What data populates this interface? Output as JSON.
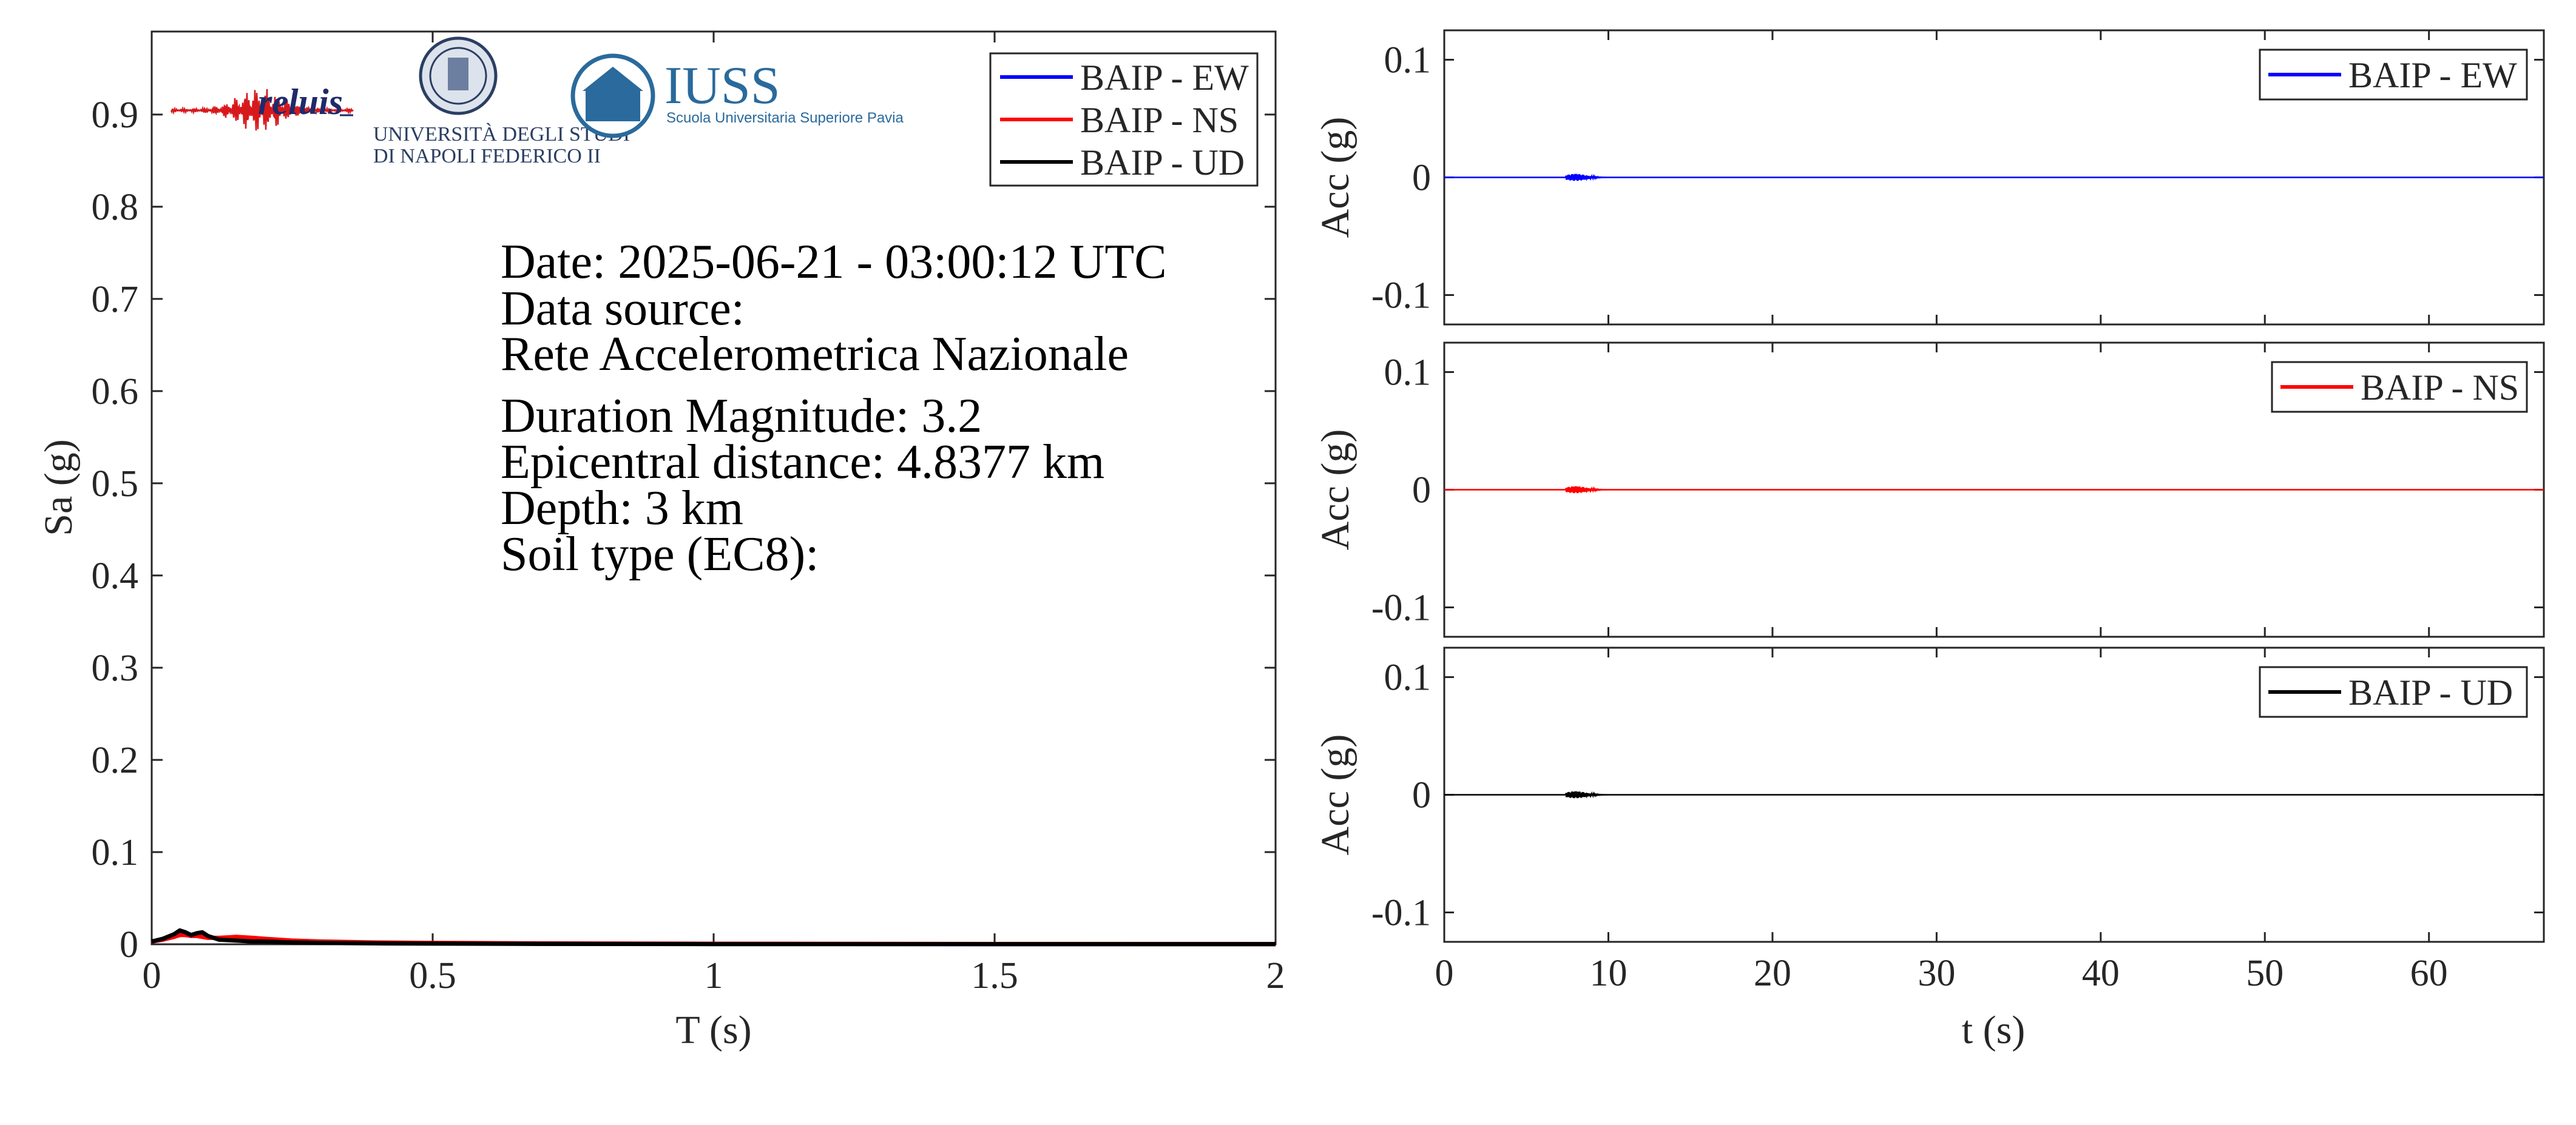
{
  "spectrum": {
    "xlabel": "T (s)",
    "ylabel": "Sa (g)",
    "xlim": [
      0,
      2
    ],
    "ylim": [
      0,
      0.99
    ],
    "xticks": [
      "0",
      "0.5",
      "1",
      "1.5",
      "2"
    ],
    "xtick_values": [
      0,
      0.5,
      1,
      1.5,
      2
    ],
    "yticks": [
      "0",
      "0.1",
      "0.2",
      "0.3",
      "0.4",
      "0.5",
      "0.6",
      "0.7",
      "0.8",
      "0.9"
    ],
    "ytick_values": [
      0,
      0.1,
      0.2,
      0.3,
      0.4,
      0.5,
      0.6,
      0.7,
      0.8,
      0.9
    ],
    "legend": [
      "BAIP - EW",
      "BAIP - NS",
      "BAIP - UD"
    ],
    "info": {
      "date": "Date: 2025-06-21 - 03:00:12 UTC",
      "source_label": "Data source:",
      "source": "Rete Accelerometrica Nazionale",
      "magnitude": "Duration Magnitude: 3.2",
      "distance": "Epicentral distance: 4.8377 km",
      "depth": "Depth: 3 km",
      "soil": "Soil type (EC8):"
    },
    "logos": {
      "reluis": "reluis",
      "unina_line1": "UNIVERSITÀ DEGLI STUDI",
      "unina_line2": "DI NAPOLI FEDERICO II",
      "iuss": "IUSS",
      "iuss_sub": "Scuola Universitaria Superiore Pavia"
    }
  },
  "time_axis": {
    "xlabel": "t (s)",
    "xlim": [
      0,
      67
    ],
    "xticks": [
      "0",
      "10",
      "20",
      "30",
      "40",
      "50",
      "60"
    ],
    "xtick_values": [
      0,
      10,
      20,
      30,
      40,
      50,
      60
    ],
    "ylabel": "Acc (g)",
    "ylim": [
      -0.125,
      0.125
    ],
    "yticks": [
      "-0.1",
      "0",
      "0.1"
    ],
    "ytick_values": [
      -0.1,
      0,
      0.1
    ]
  },
  "colors": {
    "EW": "#0000ff",
    "NS": "#ff0000",
    "UD": "#000000"
  },
  "chart_data": [
    {
      "type": "line",
      "xlabel": "T (s)",
      "ylabel": "Sa (g)",
      "xlim": [
        0,
        2
      ],
      "ylim": [
        0,
        0.99
      ],
      "legend_position": "top-right",
      "series": [
        {
          "name": "BAIP - EW",
          "color": "#0000ff",
          "x": [
            0,
            0.02,
            0.04,
            0.05,
            0.06,
            0.07,
            0.08,
            0.09,
            0.1,
            0.12,
            0.15,
            0.18,
            0.2,
            0.25,
            0.3,
            0.4,
            0.5,
            0.7,
            1.0,
            1.5,
            2.0
          ],
          "y": [
            0.003,
            0.005,
            0.009,
            0.012,
            0.011,
            0.009,
            0.01,
            0.011,
            0.008,
            0.006,
            0.006,
            0.005,
            0.004,
            0.003,
            0.002,
            0.0015,
            0.001,
            0.0006,
            0.0004,
            0.0002,
            0.0001
          ]
        },
        {
          "name": "BAIP - NS",
          "color": "#ff0000",
          "x": [
            0,
            0.02,
            0.04,
            0.05,
            0.06,
            0.07,
            0.08,
            0.09,
            0.1,
            0.12,
            0.15,
            0.18,
            0.2,
            0.25,
            0.3,
            0.4,
            0.5,
            0.7,
            1.0,
            1.5,
            2.0
          ],
          "y": [
            0.003,
            0.005,
            0.008,
            0.01,
            0.01,
            0.009,
            0.009,
            0.008,
            0.007,
            0.007,
            0.008,
            0.007,
            0.006,
            0.004,
            0.003,
            0.002,
            0.0015,
            0.001,
            0.0006,
            0.0003,
            0.0002
          ]
        },
        {
          "name": "BAIP - UD",
          "color": "#000000",
          "x": [
            0,
            0.02,
            0.04,
            0.05,
            0.06,
            0.07,
            0.08,
            0.09,
            0.1,
            0.12,
            0.15,
            0.18,
            0.2,
            0.25,
            0.3,
            0.4,
            0.5,
            0.7,
            1.0,
            1.5,
            2.0
          ],
          "y": [
            0.003,
            0.006,
            0.011,
            0.015,
            0.013,
            0.01,
            0.012,
            0.013,
            0.009,
            0.005,
            0.004,
            0.003,
            0.003,
            0.002,
            0.0015,
            0.001,
            0.0007,
            0.0004,
            0.0002,
            0.0001,
            0.0001
          ]
        }
      ]
    },
    {
      "type": "line",
      "xlabel": "",
      "ylabel": "Acc (g)",
      "xlim": [
        0,
        67
      ],
      "ylim": [
        -0.125,
        0.125
      ],
      "legend_position": "top-right",
      "series": [
        {
          "name": "BAIP - EW",
          "color": "#0000ff",
          "burst_start": 7.4,
          "burst_peak": 8.0,
          "peak_amplitude": 0.003
        }
      ]
    },
    {
      "type": "line",
      "xlabel": "",
      "ylabel": "Acc (g)",
      "xlim": [
        0,
        67
      ],
      "ylim": [
        -0.125,
        0.125
      ],
      "legend_position": "top-right",
      "series": [
        {
          "name": "BAIP - NS",
          "color": "#ff0000",
          "burst_start": 7.4,
          "burst_peak": 8.0,
          "peak_amplitude": 0.003
        }
      ]
    },
    {
      "type": "line",
      "xlabel": "t (s)",
      "ylabel": "Acc (g)",
      "xlim": [
        0,
        67
      ],
      "ylim": [
        -0.125,
        0.125
      ],
      "legend_position": "top-right",
      "series": [
        {
          "name": "BAIP - UD",
          "color": "#000000",
          "burst_start": 7.4,
          "burst_peak": 8.0,
          "peak_amplitude": 0.003
        }
      ]
    }
  ]
}
